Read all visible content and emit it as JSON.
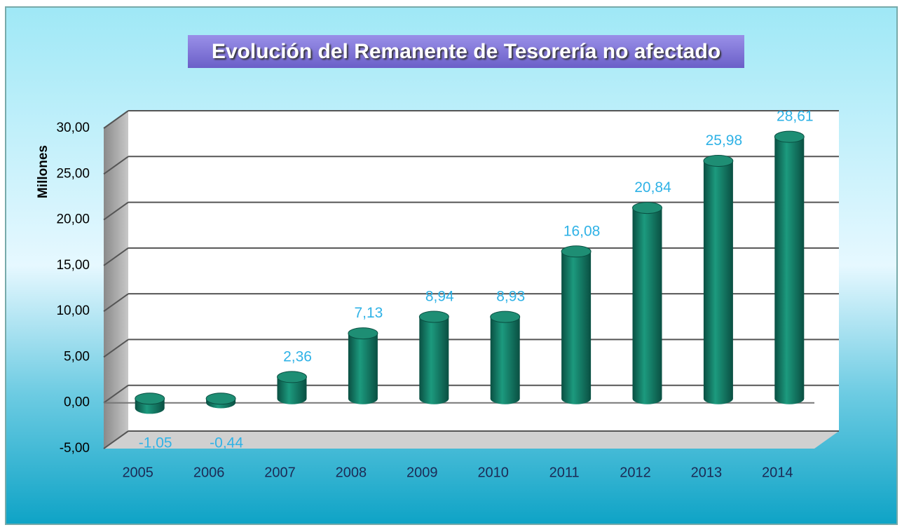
{
  "chart_data": {
    "type": "bar",
    "title": "Evolución del Remanente de Tesorería no afectado",
    "y_label": "Millones",
    "categories": [
      "2005",
      "2006",
      "2007",
      "2008",
      "2009",
      "2010",
      "2011",
      "2012",
      "2013",
      "2014"
    ],
    "values": [
      -1.05,
      -0.44,
      2.36,
      7.13,
      8.94,
      8.93,
      16.08,
      20.84,
      25.98,
      28.61
    ],
    "value_labels": [
      "-1,05",
      "-0,44",
      "2,36",
      "7,13",
      "8,94",
      "8,93",
      "16,08",
      "20,84",
      "25,98",
      "28,61"
    ],
    "color": "#137a64",
    "ylim": [
      -5,
      30
    ],
    "yticks": [
      {
        "value": -5,
        "label": "-5,00"
      },
      {
        "value": 0,
        "label": "0,00"
      },
      {
        "value": 5,
        "label": "5,00"
      },
      {
        "value": 10,
        "label": "10,00"
      },
      {
        "value": 15,
        "label": "15,00"
      },
      {
        "value": 20,
        "label": "20,00"
      },
      {
        "value": 25,
        "label": "25,00"
      },
      {
        "value": 30,
        "label": "30,00"
      }
    ],
    "grid": true
  }
}
